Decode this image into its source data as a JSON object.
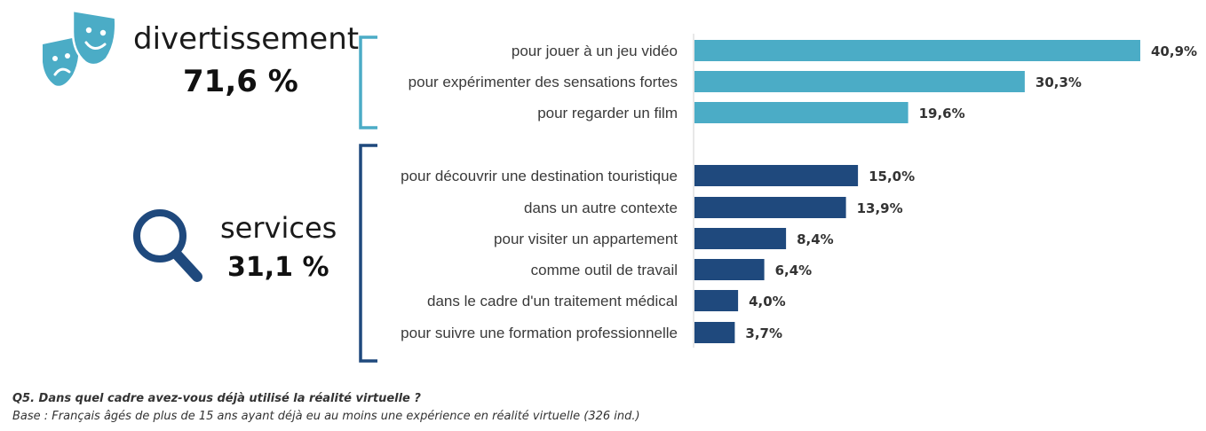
{
  "groups": {
    "entertainment": {
      "title": "divertissement",
      "value": "71,6 %",
      "icon": "theater-masks-icon",
      "color": "#4bacc6"
    },
    "services": {
      "title": "services",
      "value": "31,1 %",
      "icon": "magnifier-icon",
      "color": "#1f497d"
    }
  },
  "chart_data": {
    "type": "bar",
    "orientation": "horizontal",
    "categories": [
      "pour jouer à un jeu vidéo",
      "pour expérimenter des sensations fortes",
      "pour regarder un film",
      "pour découvrir une destination touristique",
      "dans un autre contexte",
      "pour visiter un appartement",
      "comme outil de travail",
      "dans le cadre d'un traitement médical",
      "pour suivre une formation professionnelle"
    ],
    "values": [
      40.9,
      30.3,
      19.6,
      15.0,
      13.9,
      8.4,
      6.4,
      4.0,
      3.7
    ],
    "value_labels": [
      "40,9%",
      "30,3%",
      "19,6%",
      "15,0%",
      "13,9%",
      "8,4%",
      "6,4%",
      "4,0%",
      "3,7%"
    ],
    "bar_groups": [
      "entertainment",
      "entertainment",
      "entertainment",
      "services",
      "services",
      "services",
      "services",
      "services",
      "services"
    ],
    "xlim": [
      0,
      40.9
    ],
    "grid": false,
    "legend": "none"
  },
  "footnote": {
    "question": "Q5. Dans quel cadre avez-vous déjà utilisé la réalité virtuelle ?",
    "base": "Base : Français âgés de plus de 15 ans ayant déjà eu au moins une expérience en réalité virtuelle (326 ind.)"
  }
}
